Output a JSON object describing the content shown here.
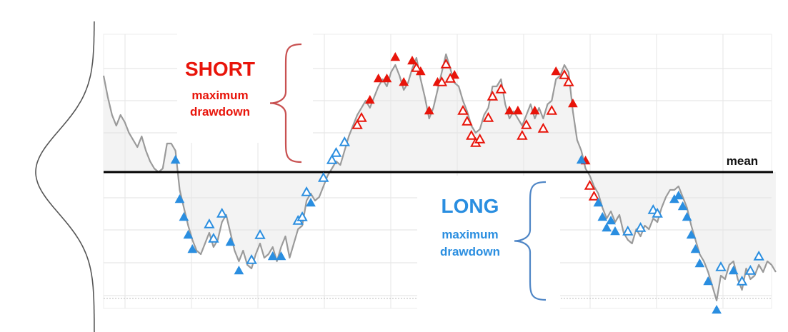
{
  "annotations": {
    "short_title": "SHORT",
    "short_sub_1": "maximum",
    "short_sub_2": "drawdown",
    "long_title": "LONG",
    "long_sub_1": "maximum",
    "long_sub_2": "drawdown",
    "mean_label": "mean"
  },
  "colors": {
    "price_line": "#9a9a9a",
    "mean_line": "#000000",
    "short_color": "#e8140a",
    "long_color": "#2a8ee0",
    "brace_short": "#c85050",
    "brace_long": "#4f86c6",
    "distribution_curve": "#555555"
  },
  "chart_data": {
    "type": "line",
    "title": "",
    "xlabel": "",
    "ylabel": "",
    "grid": true,
    "mean": 0,
    "xlim": [
      0,
      158
    ],
    "ylim": [
      -4,
      3.8
    ],
    "series": [
      {
        "values": [
          2.7,
          2.1,
          1.6,
          1.3,
          1.6,
          1.4,
          1.1,
          0.9,
          0.7,
          1.0,
          0.6,
          0.3,
          0.1,
          0.0,
          0.1,
          0.8,
          0.8,
          0.6,
          -0.5,
          -1.0,
          -1.5,
          -1.9,
          -2.2,
          -2.3,
          -2.0,
          -1.7,
          -2.1,
          -1.9,
          -1.4,
          -1.2,
          -1.7,
          -2.2,
          -2.5,
          -2.2,
          -2.6,
          -2.7,
          -2.3,
          -2.0,
          -2.4,
          -2.3,
          -2.1,
          -2.5,
          -2.1,
          -1.8,
          -2.4,
          -2.0,
          -1.6,
          -1.5,
          -0.8,
          -0.6,
          -0.8,
          -0.7,
          -0.4,
          -0.1,
          0.1,
          0.3,
          0.2,
          0.6,
          1.0,
          1.3,
          1.6,
          1.8,
          2.0,
          1.8,
          2.1,
          2.4,
          2.6,
          2.4,
          2.8,
          3.0,
          2.7,
          2.3,
          2.5,
          2.9,
          3.2,
          2.6,
          2.1,
          1.5,
          1.8,
          2.3,
          2.8,
          3.3,
          2.9,
          2.5,
          2.4,
          2.0,
          1.7,
          1.3,
          1.1,
          1.2,
          1.6,
          1.8,
          2.4,
          2.4,
          2.6,
          1.9,
          1.5,
          1.7,
          1.5,
          1.3,
          1.6,
          1.9,
          1.5,
          1.8,
          1.5,
          1.9,
          2.0,
          2.6,
          2.7,
          3.0,
          2.8,
          1.7,
          0.9,
          0.6,
          0.1,
          -0.1,
          -0.4,
          -0.6,
          -1.0,
          -1.3,
          -1.1,
          -1.4,
          -1.2,
          -1.7,
          -1.9,
          -2.0,
          -1.6,
          -1.8,
          -1.5,
          -1.6,
          -1.3,
          -1.4,
          -1.0,
          -0.7,
          -0.5,
          -0.5,
          -0.4,
          -0.7,
          -1.0,
          -1.5,
          -1.9,
          -2.3,
          -2.5,
          -2.8,
          -3.2,
          -3.6,
          -2.9,
          -3.0,
          -2.6,
          -2.5,
          -3.0,
          -3.3,
          -2.7,
          -3.0,
          -2.9,
          -2.6,
          -2.8,
          -2.5,
          -2.6,
          -2.8
        ]
      }
    ],
    "short_signals": {
      "filled_at": [
        63,
        65,
        67,
        69,
        71,
        73,
        75,
        77,
        79,
        83,
        96,
        98,
        102,
        107,
        111,
        114
      ],
      "hollow_at": [
        60,
        61,
        74,
        80,
        81,
        82,
        85,
        86,
        87,
        88,
        89,
        91,
        92,
        94,
        99,
        100,
        104,
        106,
        109,
        110,
        115,
        116
      ]
    },
    "long_signals": {
      "filled_at": [
        17,
        18,
        19,
        20,
        21,
        30,
        32,
        40,
        42,
        49,
        113,
        117,
        118,
        119,
        120,
        121,
        135,
        136,
        137,
        138,
        139,
        140,
        141,
        143,
        145,
        149
      ],
      "hollow_at": [
        25,
        26,
        28,
        35,
        37,
        46,
        47,
        48,
        52,
        54,
        55,
        57,
        124,
        127,
        130,
        131,
        146,
        151,
        153,
        155
      ]
    }
  }
}
